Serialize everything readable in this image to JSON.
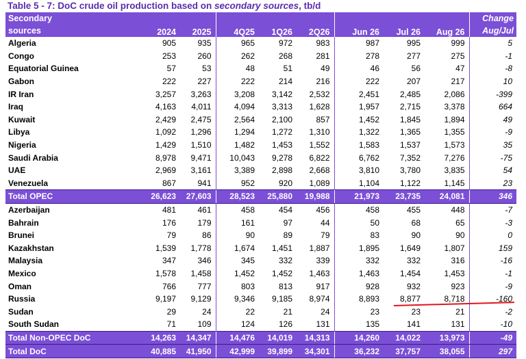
{
  "title": {
    "prefix": "Table 5 - 7: DoC crude oil production based on ",
    "emph": "secondary sources",
    "suffix": ", tb/d"
  },
  "header": {
    "row_label_line1": "Secondary",
    "row_label_line2": "sources",
    "columns": [
      "2024",
      "2025",
      "4Q25",
      "1Q26",
      "2Q26",
      "Jun 26",
      "Jul 26",
      "Aug 26"
    ],
    "change_line1": "Change",
    "change_line2": "Aug/Jul"
  },
  "rows": [
    {
      "name": "Algeria",
      "values": [
        "905",
        "935",
        "965",
        "972",
        "983",
        "987",
        "995",
        "999"
      ],
      "change": "5"
    },
    {
      "name": "Congo",
      "values": [
        "253",
        "260",
        "262",
        "268",
        "281",
        "278",
        "277",
        "275"
      ],
      "change": "-1"
    },
    {
      "name": "Equatorial Guinea",
      "values": [
        "57",
        "53",
        "48",
        "51",
        "49",
        "46",
        "56",
        "47"
      ],
      "change": "-8"
    },
    {
      "name": "Gabon",
      "values": [
        "222",
        "227",
        "222",
        "214",
        "216",
        "222",
        "207",
        "217"
      ],
      "change": "10"
    },
    {
      "name": "IR Iran",
      "values": [
        "3,257",
        "3,263",
        "3,208",
        "3,142",
        "2,532",
        "2,451",
        "2,485",
        "2,086"
      ],
      "change": "-399"
    },
    {
      "name": "Iraq",
      "values": [
        "4,163",
        "4,011",
        "4,094",
        "3,313",
        "1,628",
        "1,957",
        "2,715",
        "3,378"
      ],
      "change": "664"
    },
    {
      "name": "Kuwait",
      "values": [
        "2,429",
        "2,475",
        "2,564",
        "2,100",
        "857",
        "1,452",
        "1,845",
        "1,894"
      ],
      "change": "49"
    },
    {
      "name": "Libya",
      "values": [
        "1,092",
        "1,296",
        "1,294",
        "1,272",
        "1,310",
        "1,322",
        "1,365",
        "1,355"
      ],
      "change": "-9"
    },
    {
      "name": "Nigeria",
      "values": [
        "1,429",
        "1,510",
        "1,482",
        "1,453",
        "1,552",
        "1,583",
        "1,537",
        "1,573"
      ],
      "change": "35"
    },
    {
      "name": "Saudi Arabia",
      "values": [
        "8,978",
        "9,471",
        "10,043",
        "9,278",
        "6,822",
        "6,762",
        "7,352",
        "7,276"
      ],
      "change": "-75"
    },
    {
      "name": "UAE",
      "values": [
        "2,969",
        "3,161",
        "3,389",
        "2,898",
        "2,668",
        "3,810",
        "3,780",
        "3,835"
      ],
      "change": "54"
    },
    {
      "name": "Venezuela",
      "values": [
        "867",
        "941",
        "952",
        "920",
        "1,089",
        "1,104",
        "1,122",
        "1,145"
      ],
      "change": "23"
    }
  ],
  "total_opec": {
    "name": "Total  OPEC",
    "values": [
      "26,623",
      "27,603",
      "28,523",
      "25,880",
      "19,988",
      "21,973",
      "23,735",
      "24,081"
    ],
    "change": "346"
  },
  "rows2": [
    {
      "name": "Azerbaijan",
      "values": [
        "481",
        "461",
        "458",
        "454",
        "456",
        "458",
        "455",
        "448"
      ],
      "change": "-7"
    },
    {
      "name": "Bahrain",
      "values": [
        "176",
        "179",
        "161",
        "97",
        "44",
        "50",
        "68",
        "65"
      ],
      "change": "-3"
    },
    {
      "name": "Brunei",
      "values": [
        "79",
        "86",
        "90",
        "89",
        "79",
        "83",
        "90",
        "90"
      ],
      "change": "0"
    },
    {
      "name": "Kazakhstan",
      "values": [
        "1,539",
        "1,778",
        "1,674",
        "1,451",
        "1,887",
        "1,895",
        "1,649",
        "1,807"
      ],
      "change": "159"
    },
    {
      "name": "Malaysia",
      "values": [
        "347",
        "346",
        "345",
        "332",
        "339",
        "332",
        "332",
        "316"
      ],
      "change": "-16"
    },
    {
      "name": "Mexico",
      "values": [
        "1,578",
        "1,458",
        "1,452",
        "1,452",
        "1,463",
        "1,463",
        "1,454",
        "1,453"
      ],
      "change": "-1"
    },
    {
      "name": "Oman",
      "values": [
        "766",
        "777",
        "803",
        "813",
        "917",
        "928",
        "932",
        "923"
      ],
      "change": "-9"
    },
    {
      "name": "Russia",
      "values": [
        "9,197",
        "9,129",
        "9,346",
        "9,185",
        "8,974",
        "8,893",
        "8,877",
        "8,718"
      ],
      "change": "-160"
    },
    {
      "name": "Sudan",
      "values": [
        "29",
        "24",
        "22",
        "21",
        "24",
        "23",
        "23",
        "21"
      ],
      "change": "-2"
    },
    {
      "name": "South Sudan",
      "values": [
        "71",
        "109",
        "124",
        "126",
        "131",
        "135",
        "141",
        "131"
      ],
      "change": "-10"
    }
  ],
  "total_non_opec": {
    "name": "Total Non-OPEC DoC",
    "values": [
      "14,263",
      "14,347",
      "14,476",
      "14,019",
      "14,313",
      "14,260",
      "14,022",
      "13,973"
    ],
    "change": "-49"
  },
  "total_doc": {
    "name": "Total DoC",
    "values": [
      "40,885",
      "41,950",
      "42,999",
      "39,899",
      "34,301",
      "36,232",
      "37,757",
      "38,055"
    ],
    "change": "297"
  },
  "colors": {
    "header_purple": "#7b4fd6",
    "title_purple": "#5b2cae",
    "annotation_red": "#e0141e"
  }
}
